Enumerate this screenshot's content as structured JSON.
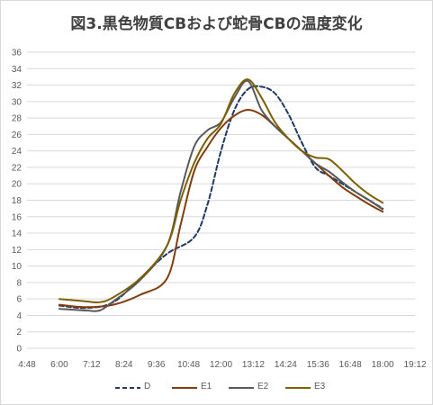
{
  "chart_data": {
    "type": "line",
    "title": "図3.黒色物質CBおよび蛇骨CBの温度変化",
    "xlabel": "",
    "ylabel": "",
    "ylim": [
      0,
      36
    ],
    "yticks": [
      "0",
      "2",
      "4",
      "6",
      "8",
      "10",
      "12",
      "14",
      "16",
      "18",
      "20",
      "22",
      "24",
      "26",
      "28",
      "30",
      "32",
      "34",
      "36"
    ],
    "xlim_minutes": [
      288,
      1152
    ],
    "xtick_labels": [
      "4:48",
      "6:00",
      "7:12",
      "8:24",
      "9:36",
      "10:48",
      "12:00",
      "13:12",
      "14:24",
      "15:36",
      "16:48",
      "18:00",
      "19:12"
    ],
    "grid": "horizontal",
    "legend_position": "bottom",
    "series": [
      {
        "name": "D",
        "color": "#1f3864",
        "dash": "dashed",
        "x": [
          "6:00",
          "7:00",
          "8:00",
          "9:00",
          "10:00",
          "11:00",
          "11:30",
          "12:00",
          "12:30",
          "13:00",
          "13:30",
          "14:00",
          "14:30",
          "15:00",
          "15:30",
          "16:00",
          "16:30",
          "17:00",
          "17:30",
          "18:00"
        ],
        "y": [
          5.2,
          4.9,
          5.6,
          8.5,
          11.5,
          13.5,
          17.5,
          24.0,
          29.0,
          31.5,
          31.8,
          31.0,
          28.5,
          25.0,
          22.0,
          21.0,
          20.0,
          19.0,
          18.0,
          17.0
        ]
      },
      {
        "name": "E1",
        "color": "#843c0c",
        "dash": "solid",
        "x": [
          "6:00",
          "7:00",
          "8:00",
          "9:00",
          "10:00",
          "10:30",
          "11:00",
          "11:30",
          "12:00",
          "12:30",
          "13:00",
          "13:30",
          "14:00",
          "14:30",
          "15:00",
          "15:30",
          "16:00",
          "16:30",
          "17:00",
          "17:30",
          "18:00"
        ],
        "y": [
          5.3,
          5.0,
          5.3,
          6.5,
          8.5,
          15.0,
          21.5,
          24.5,
          26.8,
          28.3,
          29.0,
          28.4,
          27.0,
          25.5,
          24.0,
          22.5,
          21.0,
          19.6,
          18.5,
          17.5,
          16.6
        ]
      },
      {
        "name": "E2",
        "color": "#595959",
        "dash": "solid",
        "x": [
          "6:00",
          "7:00",
          "7:30",
          "8:00",
          "9:00",
          "10:00",
          "10:30",
          "11:00",
          "11:30",
          "12:00",
          "12:30",
          "13:00",
          "13:30",
          "14:00",
          "14:30",
          "15:00",
          "15:30",
          "16:00",
          "16:30",
          "17:00",
          "17:30",
          "18:00"
        ],
        "y": [
          4.8,
          4.6,
          4.6,
          5.7,
          8.3,
          12.5,
          19.0,
          24.5,
          26.5,
          27.5,
          30.5,
          32.5,
          29.0,
          27.0,
          25.5,
          24.0,
          22.5,
          21.5,
          20.2,
          19.0,
          18.0,
          16.9
        ]
      },
      {
        "name": "E3",
        "color": "#7f6000",
        "dash": "solid",
        "x": [
          "6:00",
          "7:00",
          "7:30",
          "8:00",
          "9:00",
          "10:00",
          "10:30",
          "11:00",
          "11:30",
          "12:00",
          "12:30",
          "13:00",
          "13:30",
          "14:00",
          "14:30",
          "15:00",
          "15:30",
          "16:00",
          "16:30",
          "17:00",
          "17:30",
          "18:00"
        ],
        "y": [
          6.0,
          5.7,
          5.6,
          6.2,
          8.5,
          12.5,
          18.0,
          22.5,
          25.5,
          27.3,
          31.0,
          32.7,
          30.5,
          27.5,
          25.5,
          24.0,
          23.2,
          23.0,
          21.6,
          20.0,
          18.7,
          17.7
        ]
      }
    ]
  }
}
